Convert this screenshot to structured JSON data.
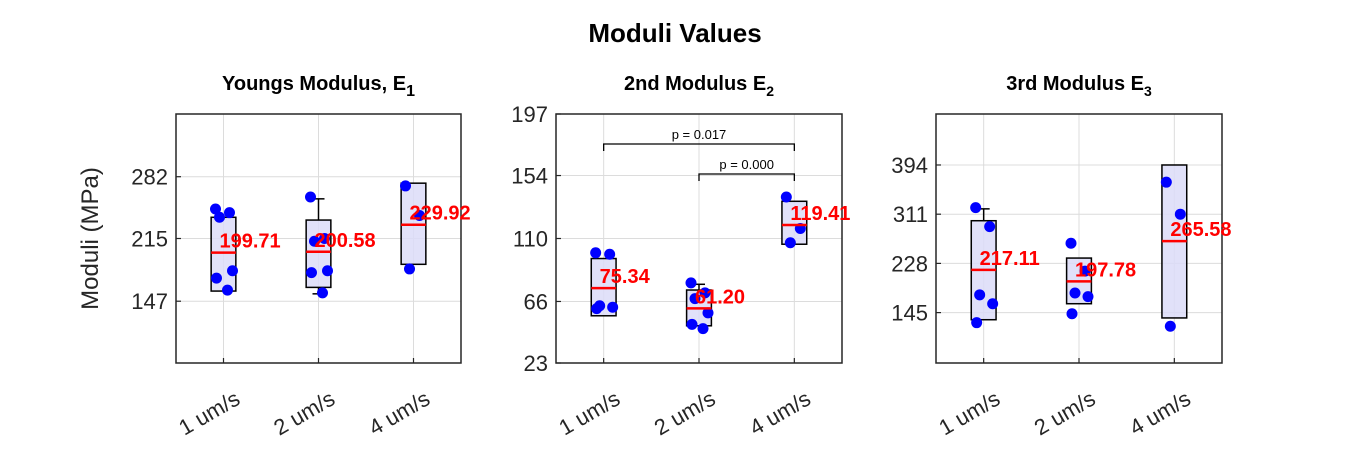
{
  "figure_title": "Moduli Values",
  "colors": {
    "box_fill": "#dcdcf8",
    "box_edge": "#000000",
    "median": "#ff0000",
    "points": "#0000ff",
    "grid": "#dcdcdc"
  },
  "chart_data": [
    {
      "type": "box",
      "title": "Youngs Modulus, E",
      "title_subscript": "1",
      "ylabel": "Moduli (MPa)",
      "ylim": [
        80,
        350
      ],
      "yticks": [
        147,
        215,
        282
      ],
      "categories": [
        "1 um/s",
        "2 um/s",
        "4 um/s"
      ],
      "boxes": [
        {
          "q1": 158,
          "q3": 238,
          "median": 199.71,
          "whisker_low": 158,
          "whisker_high": 238,
          "median_label": "199.71"
        },
        {
          "q1": 162,
          "q3": 235,
          "median": 200.58,
          "whisker_low": 155,
          "whisker_high": 258,
          "median_label": "200.58"
        },
        {
          "q1": 187,
          "q3": 275,
          "median": 229.92,
          "whisker_low": 187,
          "whisker_high": 275,
          "median_label": "229.92"
        }
      ],
      "points": [
        [
          247,
          243,
          238,
          180,
          172,
          159
        ],
        [
          260,
          215,
          212,
          180,
          178,
          156
        ],
        [
          272,
          240,
          182
        ]
      ],
      "brackets": []
    },
    {
      "type": "box",
      "title": "2nd Modulus E",
      "title_subscript": "2",
      "ylabel": "",
      "ylim": [
        23,
        197
      ],
      "yticks": [
        23,
        66,
        110,
        154,
        197
      ],
      "categories": [
        "1 um/s",
        "2 um/s",
        "4 um/s"
      ],
      "boxes": [
        {
          "q1": 56,
          "q3": 96,
          "median": 75.34,
          "whisker_low": 56,
          "whisker_high": 96,
          "median_label": "75.34"
        },
        {
          "q1": 49,
          "q3": 74,
          "median": 61.2,
          "whisker_low": 49,
          "whisker_high": 78,
          "median_label": "61.20"
        },
        {
          "q1": 106,
          "q3": 136,
          "median": 119.41,
          "whisker_low": 106,
          "whisker_high": 136,
          "median_label": "119.41"
        }
      ],
      "points": [
        [
          100,
          99,
          63,
          62,
          61
        ],
        [
          79,
          72,
          68,
          58,
          50,
          47
        ],
        [
          139,
          117,
          107
        ]
      ],
      "brackets": [
        {
          "from": 0,
          "to": 2,
          "label": "p = 0.017",
          "level": 1
        },
        {
          "from": 1,
          "to": 2,
          "label": "p = 0.000",
          "level": 0
        }
      ]
    },
    {
      "type": "box",
      "title": "3rd Modulus E",
      "title_subscript": "3",
      "ylabel": "",
      "ylim": [
        60,
        480
      ],
      "yticks": [
        145,
        228,
        311,
        394
      ],
      "categories": [
        "1 um/s",
        "2 um/s",
        "4 um/s"
      ],
      "boxes": [
        {
          "q1": 133,
          "q3": 300,
          "median": 217.11,
          "whisker_low": 133,
          "whisker_high": 320,
          "median_label": "217.11"
        },
        {
          "q1": 160,
          "q3": 237,
          "median": 197.78,
          "whisker_low": 160,
          "whisker_high": 237,
          "median_label": "197.78"
        },
        {
          "q1": 136,
          "q3": 394,
          "median": 265.58,
          "whisker_low": 136,
          "whisker_high": 394,
          "median_label": "265.58"
        }
      ],
      "points": [
        [
          322,
          290,
          175,
          160,
          128
        ],
        [
          262,
          215,
          178,
          172,
          143
        ],
        [
          365,
          311,
          122
        ]
      ],
      "brackets": []
    }
  ]
}
